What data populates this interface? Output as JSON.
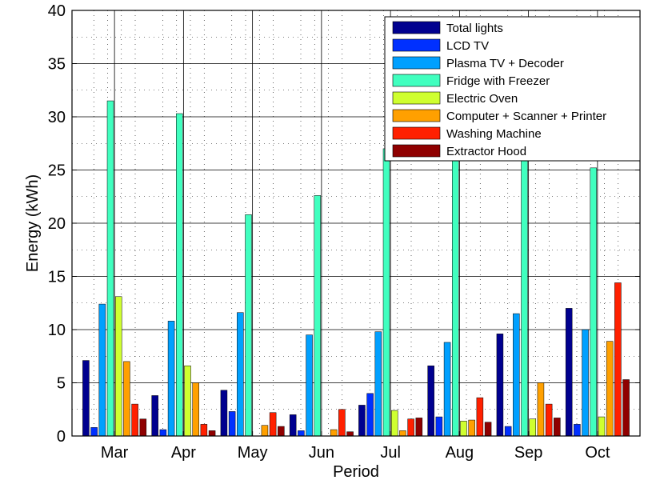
{
  "chart_data": {
    "type": "bar",
    "xlabel": "Period",
    "ylabel": "Energy (kWh)",
    "ylim": [
      0,
      40
    ],
    "yticks": [
      0,
      5,
      10,
      15,
      20,
      25,
      30,
      35,
      40
    ],
    "grid": "major and minor (dotted)",
    "legend_position": "top-right",
    "categories": [
      "Mar",
      "Apr",
      "May",
      "Jun",
      "Jul",
      "Aug",
      "Sep",
      "Oct"
    ],
    "series": [
      {
        "name": "Total lights",
        "color": "#00008F",
        "values": [
          7.1,
          3.8,
          4.3,
          2.0,
          2.9,
          6.6,
          9.6,
          12.0
        ]
      },
      {
        "name": "LCD TV",
        "color": "#0030FF",
        "values": [
          0.8,
          0.6,
          2.3,
          0.5,
          4.0,
          1.8,
          0.9,
          1.1
        ]
      },
      {
        "name": "Plasma TV + Decoder",
        "color": "#00A0FF",
        "values": [
          12.4,
          10.8,
          11.6,
          9.5,
          9.8,
          8.8,
          11.5,
          10.0
        ]
      },
      {
        "name": "Fridge with Freezer",
        "color": "#40FFBF",
        "values": [
          31.5,
          30.3,
          20.8,
          22.6,
          27.0,
          27.5,
          27.5,
          25.2
        ]
      },
      {
        "name": "Electric Oven",
        "color": "#CFFF30",
        "values": [
          13.1,
          6.6,
          0,
          0,
          2.4,
          1.4,
          1.6,
          1.8
        ]
      },
      {
        "name": "Computer + Scanner + Printer",
        "color": "#FFA000",
        "values": [
          7.0,
          5.0,
          1.0,
          0.6,
          0.5,
          1.5,
          5.0,
          8.9
        ]
      },
      {
        "name": "Washing Machine",
        "color": "#FF2000",
        "values": [
          3.0,
          1.1,
          2.2,
          2.5,
          1.6,
          3.6,
          3.0,
          14.4
        ]
      },
      {
        "name": "Extractor Hood",
        "color": "#8F0000",
        "values": [
          1.6,
          0.5,
          0.9,
          0.4,
          1.7,
          1.3,
          1.7,
          5.3
        ]
      }
    ]
  }
}
